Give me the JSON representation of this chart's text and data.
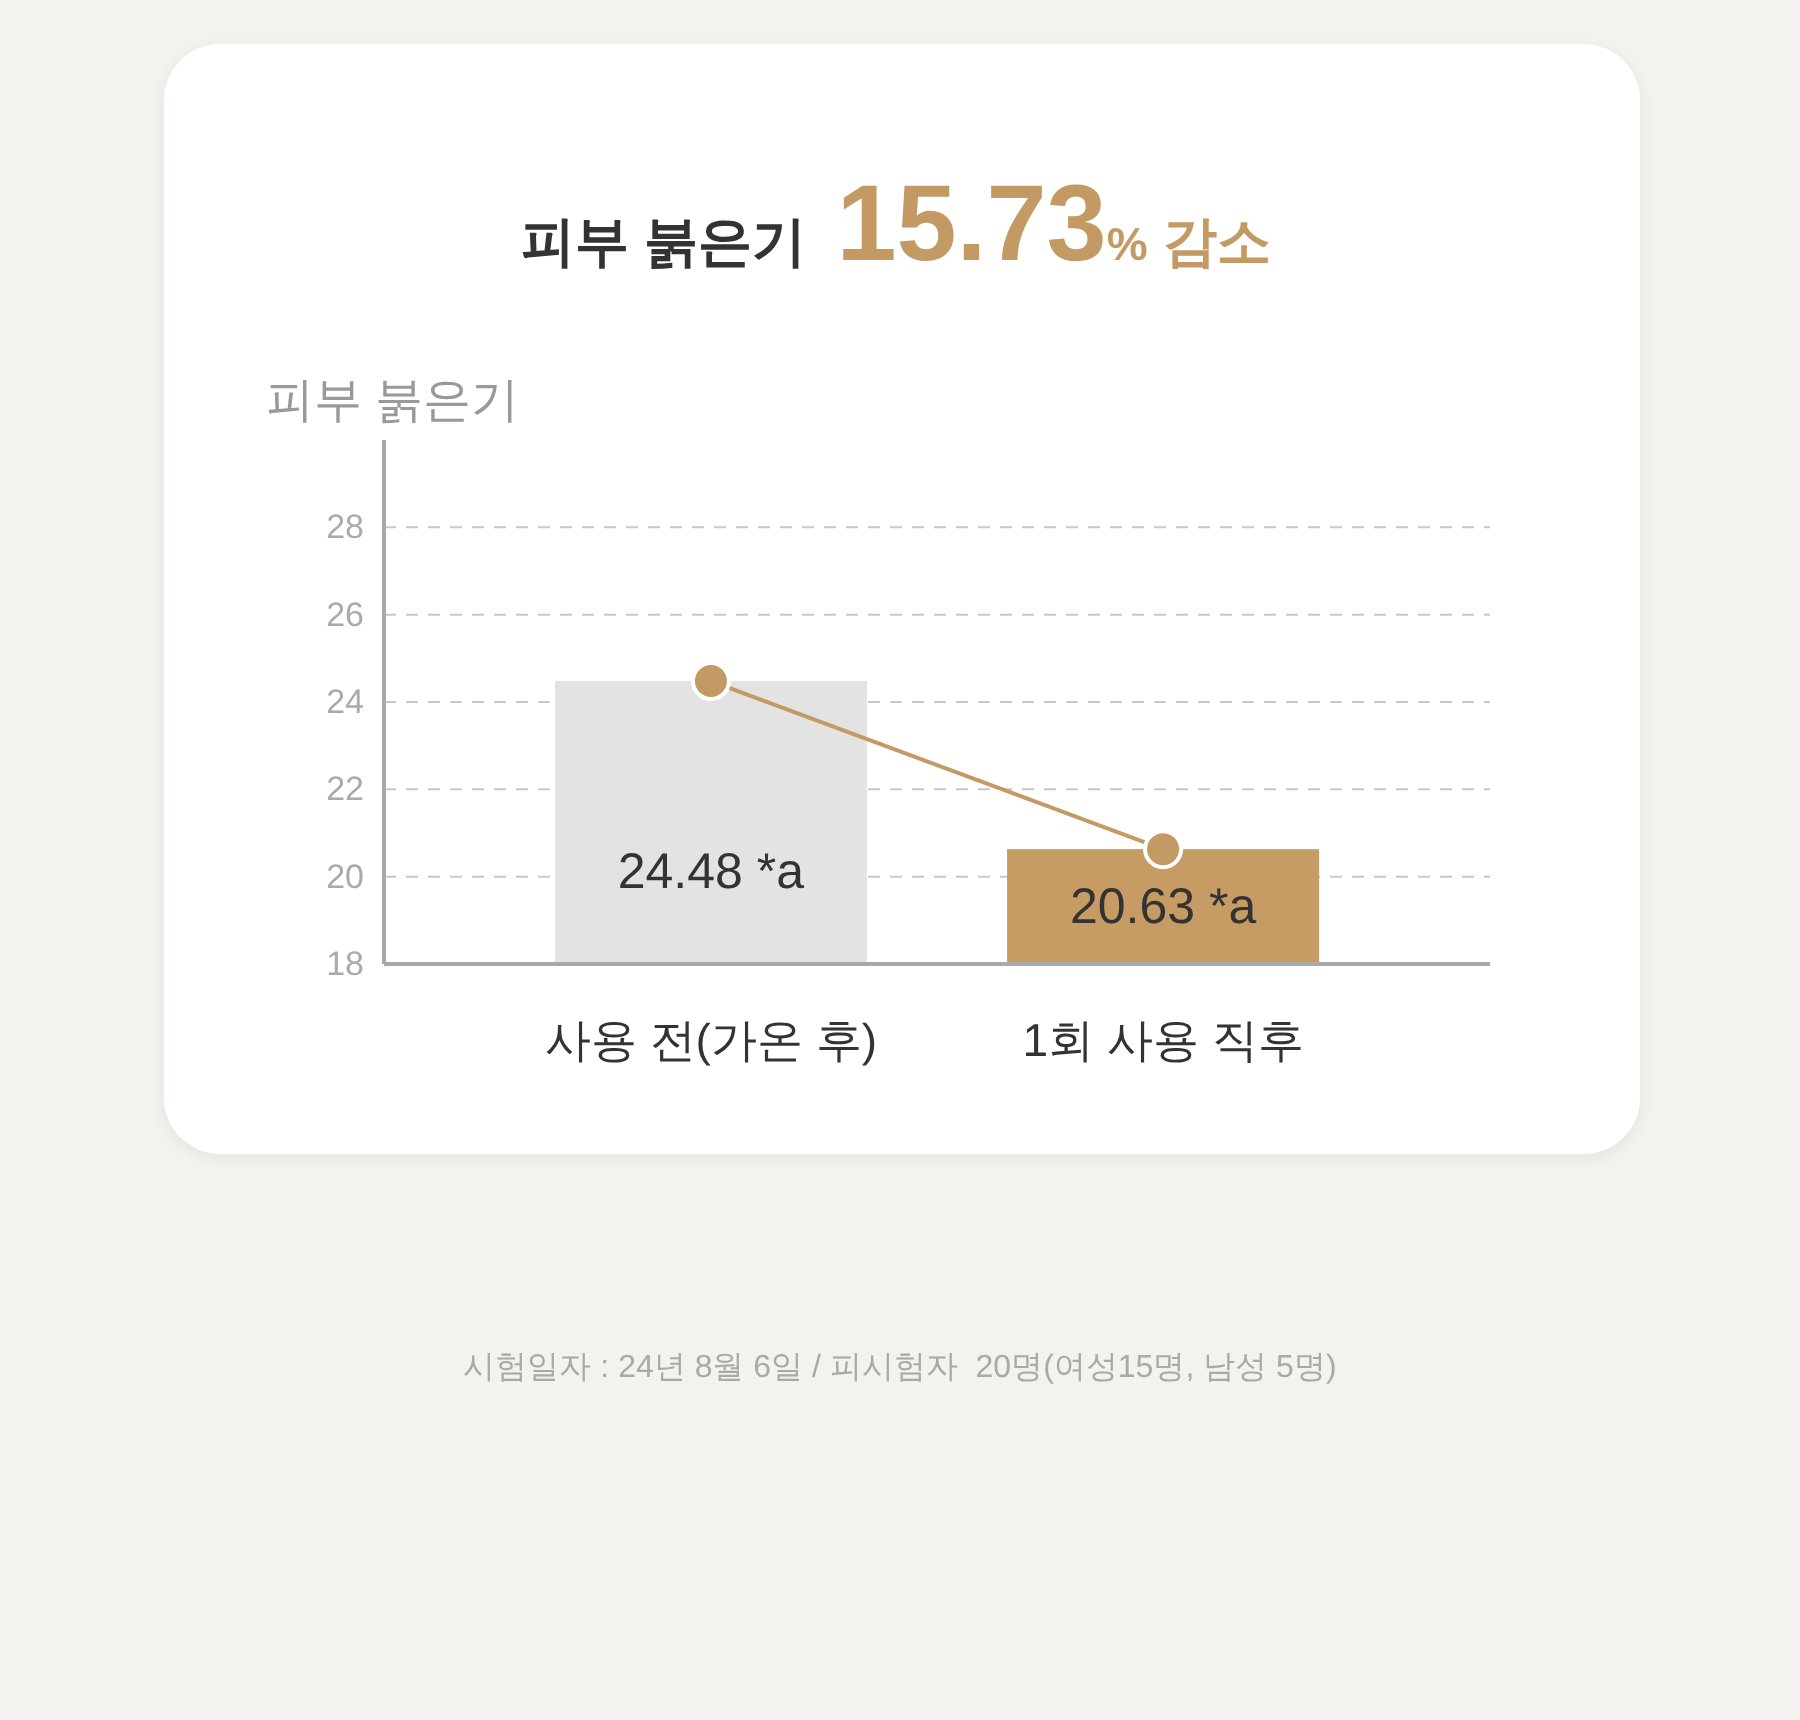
{
  "chart_data": {
    "type": "bar",
    "title": "피부 붉은기 15.73% 감소",
    "ylabel": "피부 붉은기",
    "categories": [
      "사용 전(가온 후)",
      "1회 사용 직후"
    ],
    "series": [
      {
        "values": [
          24.48,
          20.63
        ],
        "colors": [
          "#e3e3e3",
          "#c79b64"
        ],
        "value_labels": [
          "24.48 *a",
          "20.63 *a"
        ]
      },
      {
        "type": "line",
        "color": "#c49a64",
        "values": [
          24.48,
          20.63
        ],
        "marker": "circle"
      }
    ],
    "ylim": [
      18,
      30
    ],
    "yticks": [
      18,
      20,
      22,
      24,
      26,
      28
    ],
    "grid": "y",
    "annotations": [
      "시험일자 : 24년 8월 6일 / 피시험자  20명(여성15명, 남성 5명)"
    ]
  }
}
